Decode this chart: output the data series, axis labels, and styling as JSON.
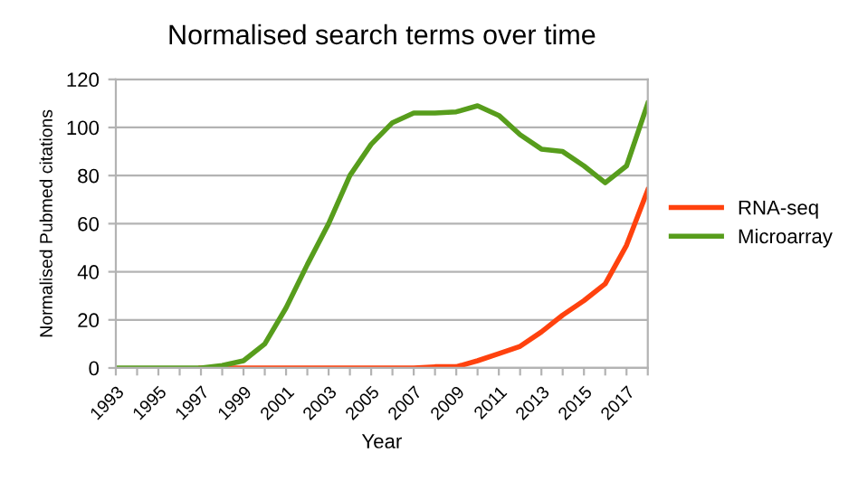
{
  "chart_data": {
    "type": "line",
    "title": "Normalised search terms over time",
    "xlabel": "Year",
    "ylabel": "Normalised Pubmed citations",
    "categories": [
      "1993",
      null,
      "1995",
      null,
      "1997",
      null,
      "1999",
      null,
      "2001",
      null,
      "2003",
      null,
      "2005",
      null,
      "2007",
      null,
      "2009",
      null,
      "2011",
      null,
      "2013",
      null,
      "2015",
      null,
      "2017",
      null
    ],
    "series": [
      {
        "name": "RNA-seq",
        "color": "#ff420e",
        "values": [
          null,
          null,
          null,
          null,
          0,
          0,
          0,
          0,
          0,
          0,
          0,
          0,
          0,
          0,
          0,
          0.5,
          0.5,
          3,
          6,
          9,
          15,
          22,
          28,
          35,
          51,
          74
        ]
      },
      {
        "name": "Microarray",
        "color": "#579d1c",
        "values": [
          0,
          0,
          0,
          0,
          0,
          1,
          3,
          10,
          25,
          43,
          60,
          80,
          93,
          102,
          106,
          106,
          106.5,
          109,
          105,
          97,
          91,
          90,
          84,
          77,
          84,
          110
        ]
      }
    ],
    "ylim": [
      0,
      120
    ],
    "yticks": [
      0,
      20,
      40,
      60,
      80,
      100,
      120
    ],
    "grid": "y",
    "legend": "right",
    "marker": "none",
    "line_style": "solid"
  }
}
